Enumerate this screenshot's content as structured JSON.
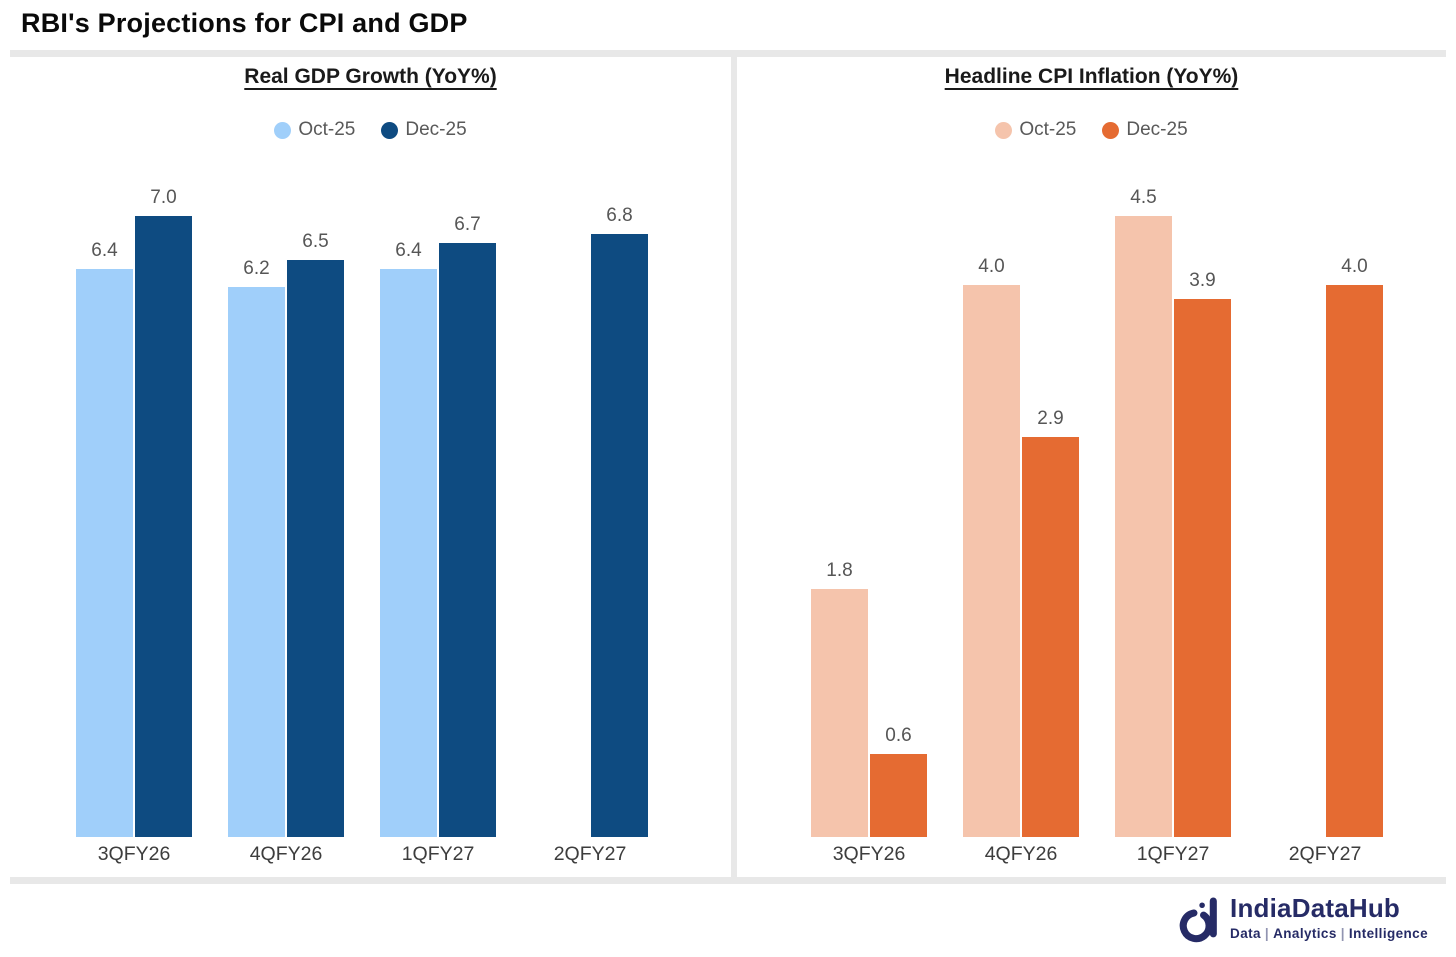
{
  "header": {
    "title": "RBI's Projections for CPI and GDP"
  },
  "chart_data": [
    {
      "type": "bar",
      "title": "Real GDP Growth (YoY%)",
      "categories": [
        "3QFY26",
        "4QFY26",
        "1QFY27",
        "2QFY27"
      ],
      "series": [
        {
          "name": "Oct-25",
          "color": "#A0CFFA",
          "values": [
            6.4,
            6.2,
            6.4,
            null
          ]
        },
        {
          "name": "Dec-25",
          "color": "#0E4B81",
          "values": [
            7.0,
            6.5,
            6.7,
            6.8
          ]
        }
      ],
      "ylim": [
        0,
        7.0
      ],
      "value_labels": true,
      "legend_position": "top",
      "grid": false
    },
    {
      "type": "bar",
      "title": "Headline CPI Inflation (YoY%)",
      "categories": [
        "3QFY26",
        "4QFY26",
        "1QFY27",
        "2QFY27"
      ],
      "series": [
        {
          "name": "Oct-25",
          "color": "#F5C4AC",
          "values": [
            1.8,
            4.0,
            4.5,
            null
          ]
        },
        {
          "name": "Dec-25",
          "color": "#E56B32",
          "values": [
            0.6,
            2.9,
            3.9,
            4.0
          ]
        }
      ],
      "ylim": [
        0,
        4.5
      ],
      "value_labels": true,
      "legend_position": "top",
      "grid": false
    }
  ],
  "footer": {
    "brand": "IndiaDataHub",
    "tagline": [
      "Data",
      "Analytics",
      "Intelligence"
    ],
    "separator": "|",
    "brand_color": "#262B66"
  }
}
